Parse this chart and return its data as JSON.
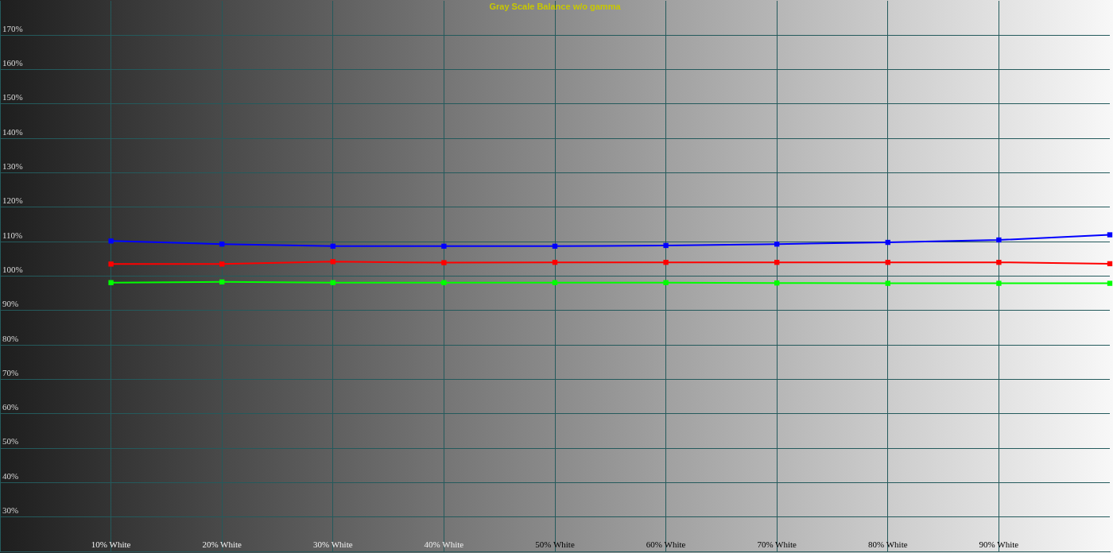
{
  "chart_data": {
    "type": "line",
    "title": "Gray Scale Balance w/o gamma",
    "x": [
      10,
      20,
      30,
      40,
      50,
      60,
      70,
      80,
      90,
      100
    ],
    "series": [
      {
        "color": "#0000ff",
        "values": [
          110.2,
          109.3,
          108.7,
          108.7,
          108.7,
          108.9,
          109.3,
          109.8,
          110.5,
          112.0
        ]
      },
      {
        "color": "#ff0000",
        "values": [
          103.5,
          103.5,
          104.2,
          103.9,
          104.0,
          104.0,
          104.0,
          104.0,
          104.0,
          103.6
        ]
      },
      {
        "color": "#00ff00",
        "values": [
          98.1,
          98.3,
          98.1,
          98.1,
          98.1,
          98.1,
          98.0,
          97.9,
          97.9,
          97.9
        ]
      }
    ],
    "xlim": [
      0,
      100
    ],
    "xticks": [
      {
        "value": 10,
        "label": "10% White"
      },
      {
        "value": 20,
        "label": "20% White"
      },
      {
        "value": 30,
        "label": "30% White"
      },
      {
        "value": 40,
        "label": "40% White"
      },
      {
        "value": 50,
        "label": "50% White"
      },
      {
        "value": 60,
        "label": "60% White"
      },
      {
        "value": 70,
        "label": "70% White"
      },
      {
        "value": 80,
        "label": "80% White"
      },
      {
        "value": 90,
        "label": "90% White"
      }
    ],
    "ylim": [
      20,
      180
    ],
    "yticks": [
      {
        "value": 30,
        "label": "30%"
      },
      {
        "value": 40,
        "label": "40%"
      },
      {
        "value": 50,
        "label": "50%"
      },
      {
        "value": 60,
        "label": "60%"
      },
      {
        "value": 70,
        "label": "70%"
      },
      {
        "value": 80,
        "label": "80%"
      },
      {
        "value": 90,
        "label": "90%"
      },
      {
        "value": 100,
        "label": "100%"
      },
      {
        "value": 110,
        "label": "110%"
      },
      {
        "value": 120,
        "label": "120%"
      },
      {
        "value": 130,
        "label": "130%"
      },
      {
        "value": 140,
        "label": "140%"
      },
      {
        "value": 150,
        "label": "150%"
      },
      {
        "value": 160,
        "label": "160%"
      },
      {
        "value": 170,
        "label": "170%"
      }
    ],
    "grid": true,
    "marker": "square",
    "line_style": "solid"
  }
}
